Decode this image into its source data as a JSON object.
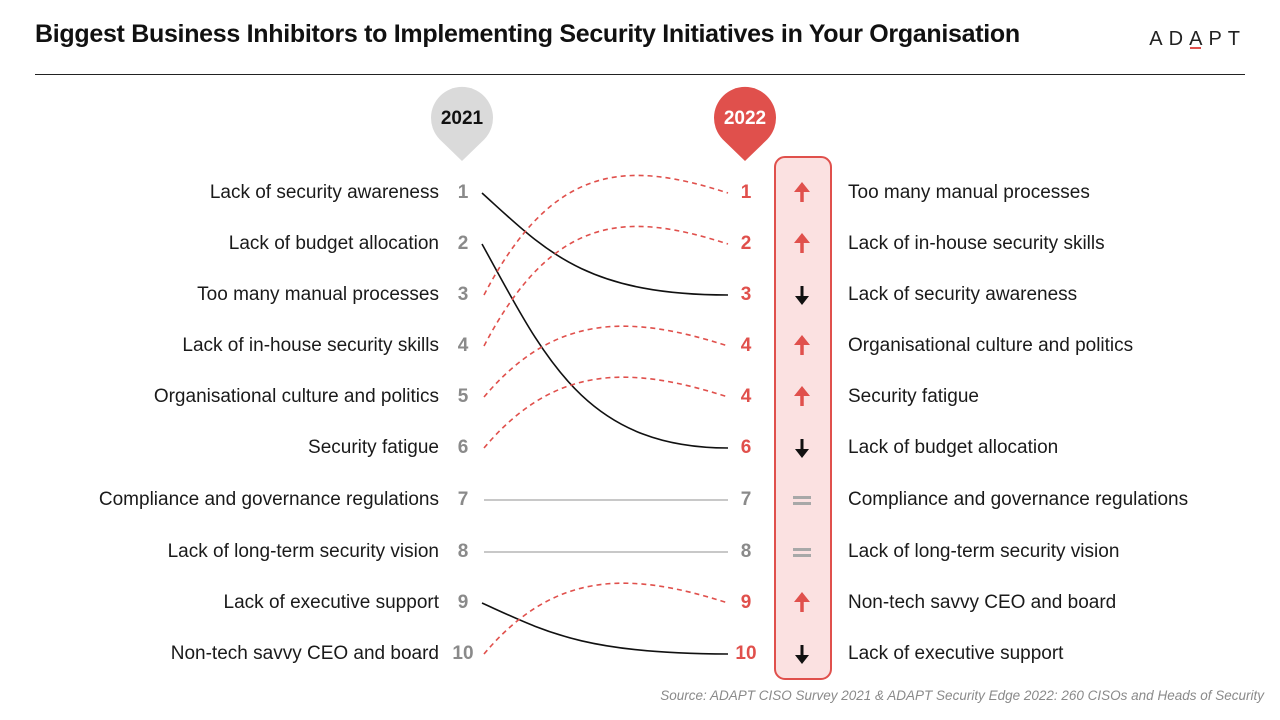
{
  "header": {
    "title": "Biggest Business Inhibitors to Implementing Security Initiatives in Your Organisation",
    "logo": "ADAPT"
  },
  "footer": {
    "source": "Source: ADAPT CISO Survey 2021 & ADAPT Security Edge 2022: 260 CISOs and Heads of Security"
  },
  "colors": {
    "accent": "#e0504c",
    "highlight_band": "#fbe1e1",
    "pin_2021": "#dadada",
    "label_grey": "#8a8a8a",
    "line_same": "#b5b5b5",
    "line_down": "#111111"
  },
  "chart_data": {
    "type": "slope",
    "columns": [
      "2021",
      "2022"
    ],
    "left": [
      {
        "rank": "1",
        "label": "Lack of security awareness"
      },
      {
        "rank": "2",
        "label": "Lack of budget allocation"
      },
      {
        "rank": "3",
        "label": "Too many manual processes"
      },
      {
        "rank": "4",
        "label": "Lack of in-house security skills"
      },
      {
        "rank": "5",
        "label": "Organisational culture and politics"
      },
      {
        "rank": "6",
        "label": "Security fatigue"
      },
      {
        "rank": "7",
        "label": "Compliance and governance regulations"
      },
      {
        "rank": "8",
        "label": "Lack of long-term security vision"
      },
      {
        "rank": "9",
        "label": "Lack of executive support"
      },
      {
        "rank": "10",
        "label": "Non-tech savvy CEO and board"
      }
    ],
    "right": [
      {
        "rank": "1",
        "label": "Too many manual processes",
        "change": "up"
      },
      {
        "rank": "2",
        "label": "Lack of in-house security skills",
        "change": "up"
      },
      {
        "rank": "3",
        "label": "Lack of security awareness",
        "change": "down"
      },
      {
        "rank": "4",
        "label": "Organisational culture and politics",
        "change": "up"
      },
      {
        "rank": "4",
        "label": "Security fatigue",
        "change": "up"
      },
      {
        "rank": "6",
        "label": "Lack of budget allocation",
        "change": "down"
      },
      {
        "rank": "7",
        "label": "Compliance and governance regulations",
        "change": "same"
      },
      {
        "rank": "8",
        "label": "Lack of long-term security vision",
        "change": "same"
      },
      {
        "rank": "9",
        "label": "Non-tech savvy CEO and board",
        "change": "up"
      },
      {
        "rank": "10",
        "label": "Lack of executive support",
        "change": "down"
      }
    ],
    "links": [
      {
        "from": 0,
        "to": 2,
        "change": "down"
      },
      {
        "from": 1,
        "to": 5,
        "change": "down"
      },
      {
        "from": 2,
        "to": 0,
        "change": "up"
      },
      {
        "from": 3,
        "to": 1,
        "change": "up"
      },
      {
        "from": 4,
        "to": 3,
        "change": "up"
      },
      {
        "from": 5,
        "to": 4,
        "change": "up"
      },
      {
        "from": 6,
        "to": 6,
        "change": "same"
      },
      {
        "from": 7,
        "to": 7,
        "change": "same"
      },
      {
        "from": 8,
        "to": 9,
        "change": "down"
      },
      {
        "from": 9,
        "to": 8,
        "change": "up"
      }
    ]
  }
}
